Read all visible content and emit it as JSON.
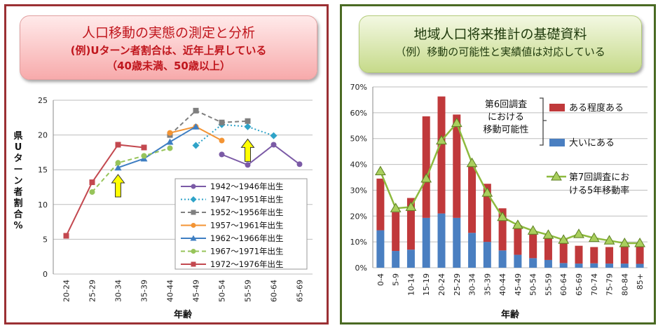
{
  "left_panel": {
    "title": "人口移動の実態の測定と分析",
    "subtitle": "(例)Uターン者割合は、近年上昇している",
    "subtitle2": "（40歳未満、50歳以上）"
  },
  "right_panel": {
    "title": "地域人口将来推計の基礎資料",
    "subtitle": "（例）移動の可能性と実績値は対応している"
  },
  "chart_data": [
    {
      "type": "line",
      "title": "",
      "xlabel": "年齢",
      "ylabel": "県Uターン者割合%",
      "ylim": [
        0,
        25
      ],
      "yticks": [
        0,
        5,
        10,
        15,
        20,
        25
      ],
      "categories": [
        "20-24",
        "25-29",
        "30-34",
        "35-39",
        "40-44",
        "45-49",
        "50-54",
        "55-59",
        "60-64",
        "65-69"
      ],
      "grid": "horizontal",
      "legend_position": "bottom-right",
      "series": [
        {
          "name": "1942～1946年出生",
          "color": "#7b5aa6",
          "marker": "circle",
          "dash": "solid",
          "values": [
            null,
            null,
            null,
            null,
            null,
            null,
            17.2,
            15.7,
            18.6,
            15.8
          ]
        },
        {
          "name": "1947～1951年出生",
          "color": "#2fa3c8",
          "marker": "diamond",
          "dash": "dot",
          "values": [
            null,
            null,
            null,
            null,
            null,
            18.5,
            21.5,
            21.2,
            19.9,
            null
          ]
        },
        {
          "name": "1952～1956年出生",
          "color": "#7f7f7f",
          "marker": "square",
          "dash": "dash",
          "values": [
            null,
            null,
            null,
            null,
            20.0,
            23.5,
            21.8,
            22.0,
            null,
            null
          ]
        },
        {
          "name": "1957～1961年出生",
          "color": "#f39434",
          "marker": "circle",
          "dash": "solid",
          "values": [
            null,
            null,
            null,
            null,
            20.3,
            21.2,
            19.2,
            null,
            null,
            null
          ]
        },
        {
          "name": "1962～1966年出生",
          "color": "#3e7ec2",
          "marker": "triangle",
          "dash": "solid",
          "values": [
            null,
            null,
            15.3,
            16.6,
            19.0,
            21.2,
            null,
            null,
            null,
            null
          ]
        },
        {
          "name": "1967～1971年出生",
          "color": "#97c45a",
          "marker": "circle",
          "dash": "dash",
          "values": [
            null,
            11.8,
            16.0,
            17.0,
            18.1,
            null,
            null,
            null,
            null,
            null
          ]
        },
        {
          "name": "1972～1976年出生",
          "color": "#c3484f",
          "marker": "square",
          "dash": "solid",
          "values": [
            5.5,
            13.2,
            18.6,
            18.2,
            null,
            null,
            null,
            null,
            null,
            null
          ]
        }
      ],
      "annotations": [
        {
          "type": "arrow",
          "direction": "up",
          "category": "30-34",
          "value": 12.5,
          "color": "#ffff00"
        },
        {
          "type": "arrow",
          "direction": "up",
          "category": "55-59",
          "value": 17.6,
          "color": "#ffff00"
        }
      ]
    },
    {
      "type": "bar",
      "stacked": true,
      "title": "",
      "xlabel": "年齢",
      "ylabel": "",
      "ylim": [
        0,
        70
      ],
      "yticks": [
        0,
        10,
        20,
        30,
        40,
        50,
        60,
        70
      ],
      "ytick_format": "percent",
      "categories": [
        "0-4",
        "5-9",
        "10-14",
        "15-19",
        "20-24",
        "25-29",
        "30-34",
        "35-39",
        "40-44",
        "45-49",
        "50-54",
        "55-59",
        "60-64",
        "65-69",
        "70-74",
        "75-79",
        "80-84",
        "85+"
      ],
      "grid": "horizontal",
      "series": [
        {
          "name": "大いにある",
          "color": "#4a7fc1",
          "values": [
            14.5,
            6.5,
            7.0,
            19.3,
            21.0,
            19.3,
            13.5,
            10.0,
            6.7,
            5.0,
            3.7,
            3.0,
            1.8,
            1.6,
            1.7,
            1.6,
            1.6,
            1.5
          ]
        },
        {
          "name": "ある程度ある",
          "color": "#c0393b",
          "values": [
            20.0,
            15.0,
            20.0,
            39.3,
            45.3,
            40.0,
            26.0,
            22.5,
            16.3,
            11.5,
            10.5,
            9.5,
            9.2,
            6.9,
            6.3,
            6.4,
            6.4,
            6.5
          ]
        }
      ],
      "overlay_line": {
        "name": "第7回調査における5年移動率",
        "label_lines": [
          "第7回調査にお",
          "ける5年移動率"
        ],
        "color": "#8dba3e",
        "marker": "triangle",
        "values": [
          37.3,
          23.0,
          23.5,
          34.5,
          49.2,
          56.0,
          40.5,
          29.0,
          19.6,
          16.5,
          14.3,
          12.7,
          10.8,
          13.0,
          11.5,
          10.5,
          9.5,
          9.5
        ]
      },
      "group_label": [
        "第6回調査",
        "における",
        "移動可能性"
      ],
      "legend_position": "right"
    }
  ]
}
